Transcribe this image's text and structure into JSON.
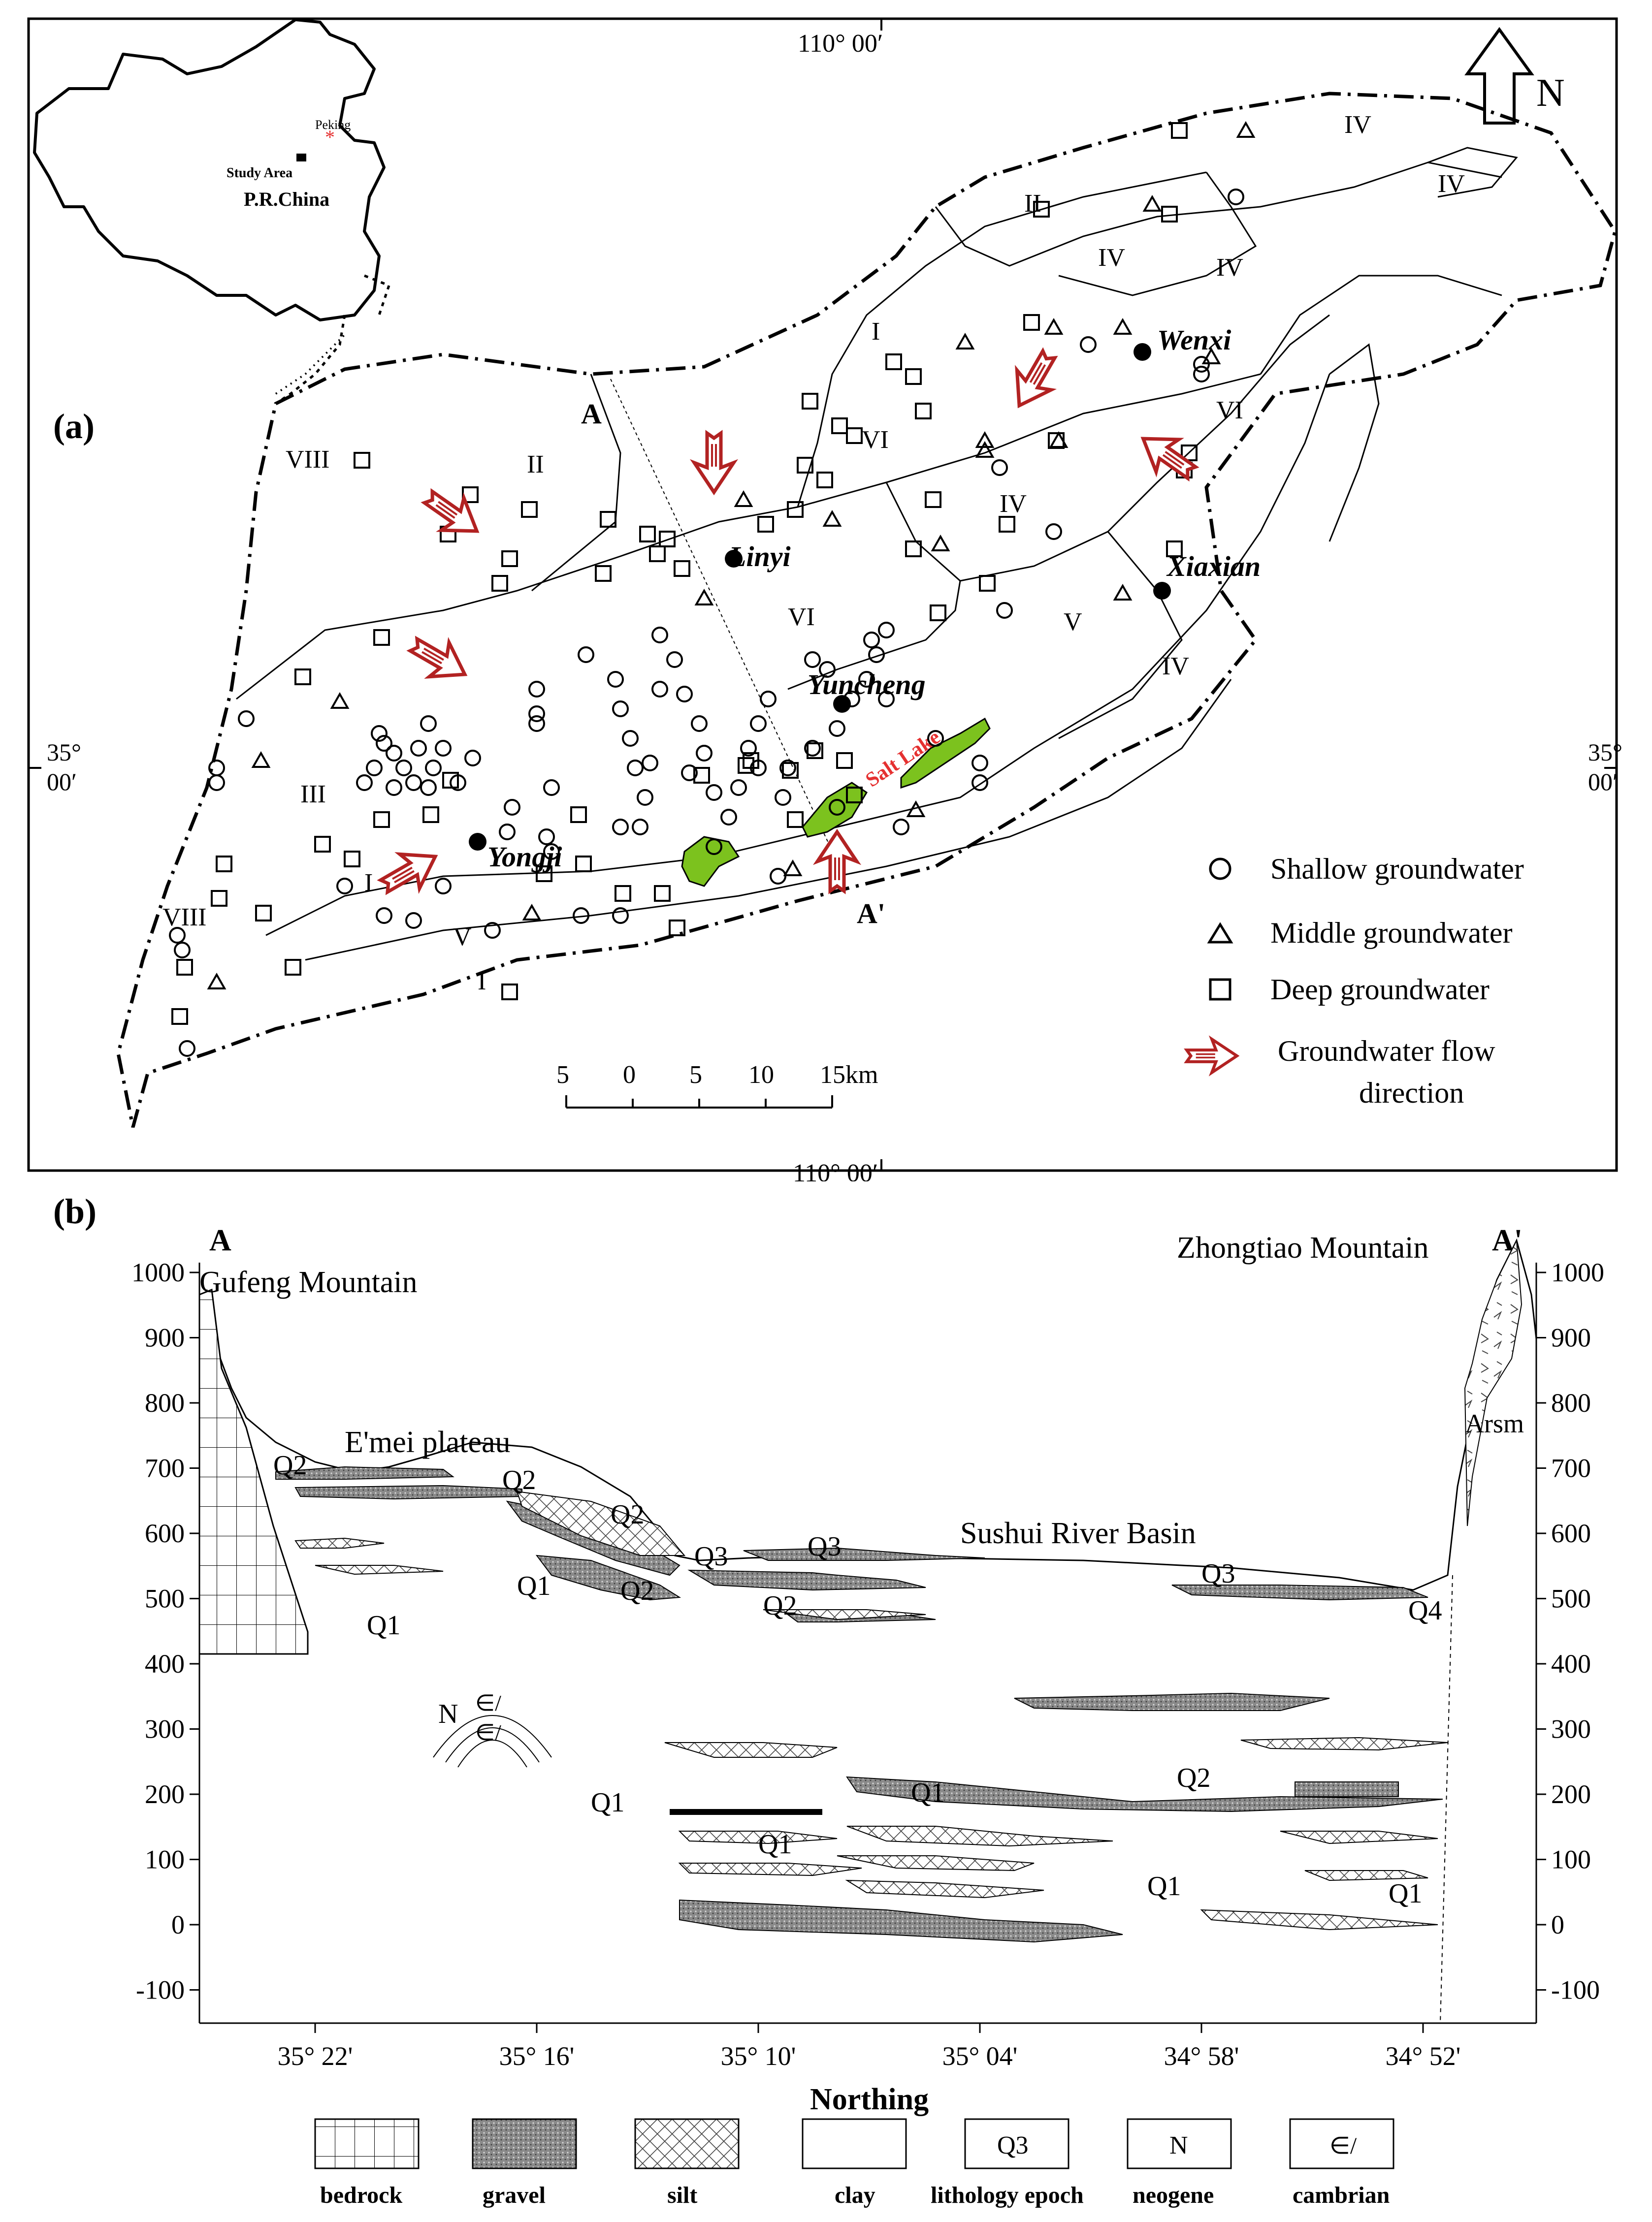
{
  "panel_a": {
    "label": "(a)",
    "top_meridian": "110° 00′",
    "bottom_meridian": "110° 00′",
    "left_parallel": [
      "35°",
      "00′"
    ],
    "right_parallel": [
      "35°",
      "00′"
    ],
    "north_label": "N",
    "section_start": "A",
    "section_end": "A'",
    "inset": {
      "capital": "Peking",
      "study_area": "Study Area",
      "country": "P.R.China"
    },
    "cities": [
      "Linyi",
      "Wenxi",
      "Xiaxian",
      "Yuncheng",
      "Yongji"
    ],
    "lake": "Salt Lake",
    "zones": [
      "I",
      "II",
      "III",
      "IV",
      "V",
      "VI",
      "VIII"
    ],
    "scale": {
      "ticks": [
        "5",
        "0",
        "5",
        "10",
        "15km"
      ]
    },
    "legend": [
      {
        "symbol": "circle",
        "label": "Shallow groundwater"
      },
      {
        "symbol": "triangle",
        "label": "Middle groundwater"
      },
      {
        "symbol": "square",
        "label": "Deep groundwater"
      },
      {
        "symbol": "arrow",
        "label": "Groundwater flow",
        "label2": "direction"
      }
    ],
    "colors": {
      "arrow": "#b22222",
      "lake": "#7cc21e",
      "lake_text": "#e53030"
    }
  },
  "panel_b": {
    "label": "(b)",
    "left_end": "A",
    "right_end": "A'",
    "y_ticks": [
      "1000",
      "900",
      "800",
      "700",
      "600",
      "500",
      "400",
      "300",
      "200",
      "100",
      "0",
      "-100"
    ],
    "x_ticks": [
      "35°  22'",
      "35°  16'",
      "35°  10'",
      "35°  04'",
      "34°  58'",
      "34°  52'"
    ],
    "x_title": "Northing",
    "places": {
      "gufeng": "Gufeng Mountain",
      "zhongtiao": "Zhongtiao  Mountain",
      "emei": "E'mei plateau",
      "sushui": "Sushui River Basin",
      "arsm": "Arsm"
    },
    "units": {
      "q1_a": "Q1",
      "q1_b": "Q1",
      "q1_c": "Q1",
      "q1_d": "Q1",
      "q1_e": "Q1",
      "q1_f": "Q1",
      "q1_g": "Q1",
      "q2_a": "Q2",
      "q2_b": "Q2",
      "q2_c": "Q2",
      "q2_d": "Q2",
      "q2_e": "Q2",
      "q2_f": "Q2",
      "q3_a": "Q3",
      "q3_b": "Q3",
      "q3_c": "Q3",
      "q4": "Q4",
      "n": "N",
      "cam1": "∈/",
      "cam2": "∈/"
    },
    "legend": [
      {
        "key": "bedrock",
        "label": "bedrock"
      },
      {
        "key": "gravel",
        "label": "gravel"
      },
      {
        "key": "silt",
        "label": "silt"
      },
      {
        "key": "clay",
        "label": "clay"
      },
      {
        "key": "epoch",
        "symbol": "Q3",
        "label": "lithology epoch"
      },
      {
        "key": "neogene",
        "symbol": "N",
        "label": "neogene"
      },
      {
        "key": "cambrian",
        "symbol": "∈/",
        "label": "cambrian"
      }
    ]
  }
}
